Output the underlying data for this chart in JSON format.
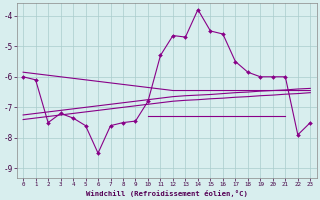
{
  "xlabel": "Windchill (Refroidissement éolien,°C)",
  "background_color": "#d8eeee",
  "line_color": "#880088",
  "grid_color": "#aacccc",
  "x": [
    0,
    1,
    2,
    3,
    4,
    5,
    6,
    7,
    8,
    9,
    10,
    11,
    12,
    13,
    14,
    15,
    16,
    17,
    18,
    19,
    20,
    21,
    22,
    23
  ],
  "y_main": [
    -6.0,
    -6.1,
    -7.5,
    -7.2,
    -7.35,
    -7.6,
    -8.5,
    -7.6,
    -7.5,
    -7.45,
    -6.8,
    -5.3,
    -4.65,
    -4.7,
    -3.8,
    -4.5,
    -4.6,
    -5.5,
    -5.85,
    -6.0,
    -6.0,
    -6.0,
    -7.9,
    -7.5
  ],
  "y_upper_trend": [
    -5.85,
    -5.9,
    -5.95,
    -6.0,
    -6.05,
    -6.1,
    -6.15,
    -6.2,
    -6.25,
    -6.3,
    -6.35,
    -6.4,
    -6.45,
    -6.45,
    -6.45,
    -6.45,
    -6.45,
    -6.45,
    -6.45,
    -6.45,
    -6.45,
    -6.45,
    -6.45,
    -6.45
  ],
  "y_lower_trend1": [
    -7.25,
    -7.2,
    -7.15,
    -7.1,
    -7.05,
    -7.0,
    -6.95,
    -6.9,
    -6.85,
    -6.8,
    -6.75,
    -6.7,
    -6.65,
    -6.62,
    -6.6,
    -6.58,
    -6.55,
    -6.52,
    -6.5,
    -6.47,
    -6.45,
    -6.43,
    -6.4,
    -6.38
  ],
  "y_lower_trend2": [
    -7.4,
    -7.35,
    -7.3,
    -7.25,
    -7.2,
    -7.15,
    -7.1,
    -7.05,
    -7.0,
    -6.95,
    -6.9,
    -6.85,
    -6.8,
    -6.77,
    -6.75,
    -6.72,
    -6.7,
    -6.67,
    -6.65,
    -6.62,
    -6.6,
    -6.57,
    -6.55,
    -6.52
  ],
  "y_flat_x": [
    10,
    11,
    12,
    13,
    14,
    15,
    16,
    17,
    18,
    19,
    20,
    21
  ],
  "y_flat_y": [
    -7.3,
    -7.3,
    -7.3,
    -7.3,
    -7.3,
    -7.3,
    -7.3,
    -7.3,
    -7.3,
    -7.3,
    -7.3,
    -7.3
  ],
  "ylim": [
    -9.3,
    -3.6
  ],
  "yticks": [
    -9,
    -8,
    -7,
    -6,
    -5,
    -4
  ],
  "xlim": [
    -0.5,
    23.5
  ]
}
